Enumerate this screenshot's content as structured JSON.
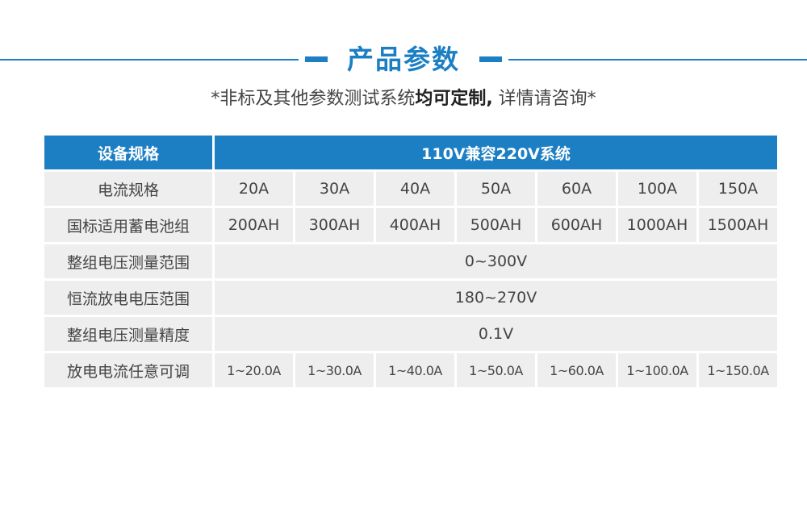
{
  "title": "产品参数",
  "subtitle": {
    "prefix": "*非标及其他参数测试系统",
    "emphasis": "均可定制,",
    "suffix": " 详情请咨询*"
  },
  "table": {
    "header": {
      "label": "设备规格",
      "value": "110V兼容220V系统"
    },
    "rows": [
      {
        "label": "电流规格",
        "values": [
          "20A",
          "30A",
          "40A",
          "50A",
          "60A",
          "100A",
          "150A"
        ]
      },
      {
        "label": "国标适用蓄电池组",
        "values": [
          "200AH",
          "300AH",
          "400AH",
          "500AH",
          "600AH",
          "1000AH",
          "1500AH"
        ]
      },
      {
        "label": "整组电压测量范围",
        "value": "0~300V"
      },
      {
        "label": "恒流放电电压范围",
        "value": "180~270V"
      },
      {
        "label": "整组电压测量精度",
        "value": "0.1V"
      },
      {
        "label": "放电电流任意可调",
        "values": [
          "1~20.0A",
          "1~30.0A",
          "1~40.0A",
          "1~50.0A",
          "1~60.0A",
          "1~100.0A",
          "1~150.0A"
        ]
      }
    ]
  },
  "colors": {
    "accent": "#1c7fc4",
    "cell_bg": "#eeeeee"
  }
}
